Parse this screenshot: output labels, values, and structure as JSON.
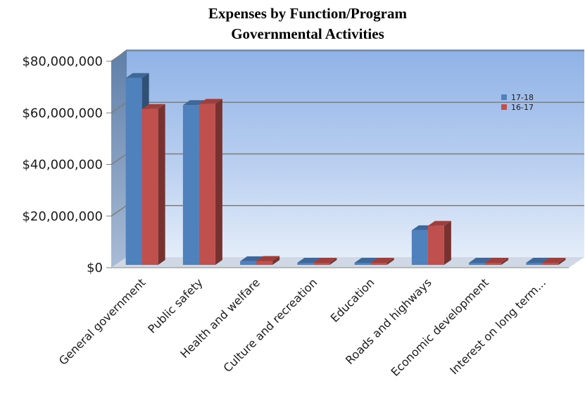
{
  "chart_data": {
    "type": "bar",
    "title": "Expenses by Function/Program",
    "subtitle": "Governmental Activities",
    "xlabel": "",
    "ylabel": "",
    "ylim": [
      0,
      80000000
    ],
    "yticks": [
      0,
      20000000,
      40000000,
      60000000,
      80000000
    ],
    "ytick_labels": [
      "$0",
      "$20,000,000",
      "$40,000,000",
      "$60,000,000",
      "$80,000,000"
    ],
    "grid": true,
    "legend_position": "top-right",
    "categories": [
      "General government",
      "Public safety",
      "Health and welfare",
      "Culture and recreation",
      "Education",
      "Roads and highways",
      "Economic development",
      "Interest on long term..."
    ],
    "series": [
      {
        "name": "17-18",
        "color": "#4f81bd",
        "values": [
          73500000,
          63000000,
          2500000,
          400000,
          300000,
          14500000,
          200000,
          1500000
        ]
      },
      {
        "name": "16-17",
        "color": "#c0504d",
        "values": [
          61500000,
          63500000,
          2600000,
          350000,
          900000,
          16200000,
          150000,
          1800000
        ]
      }
    ]
  }
}
